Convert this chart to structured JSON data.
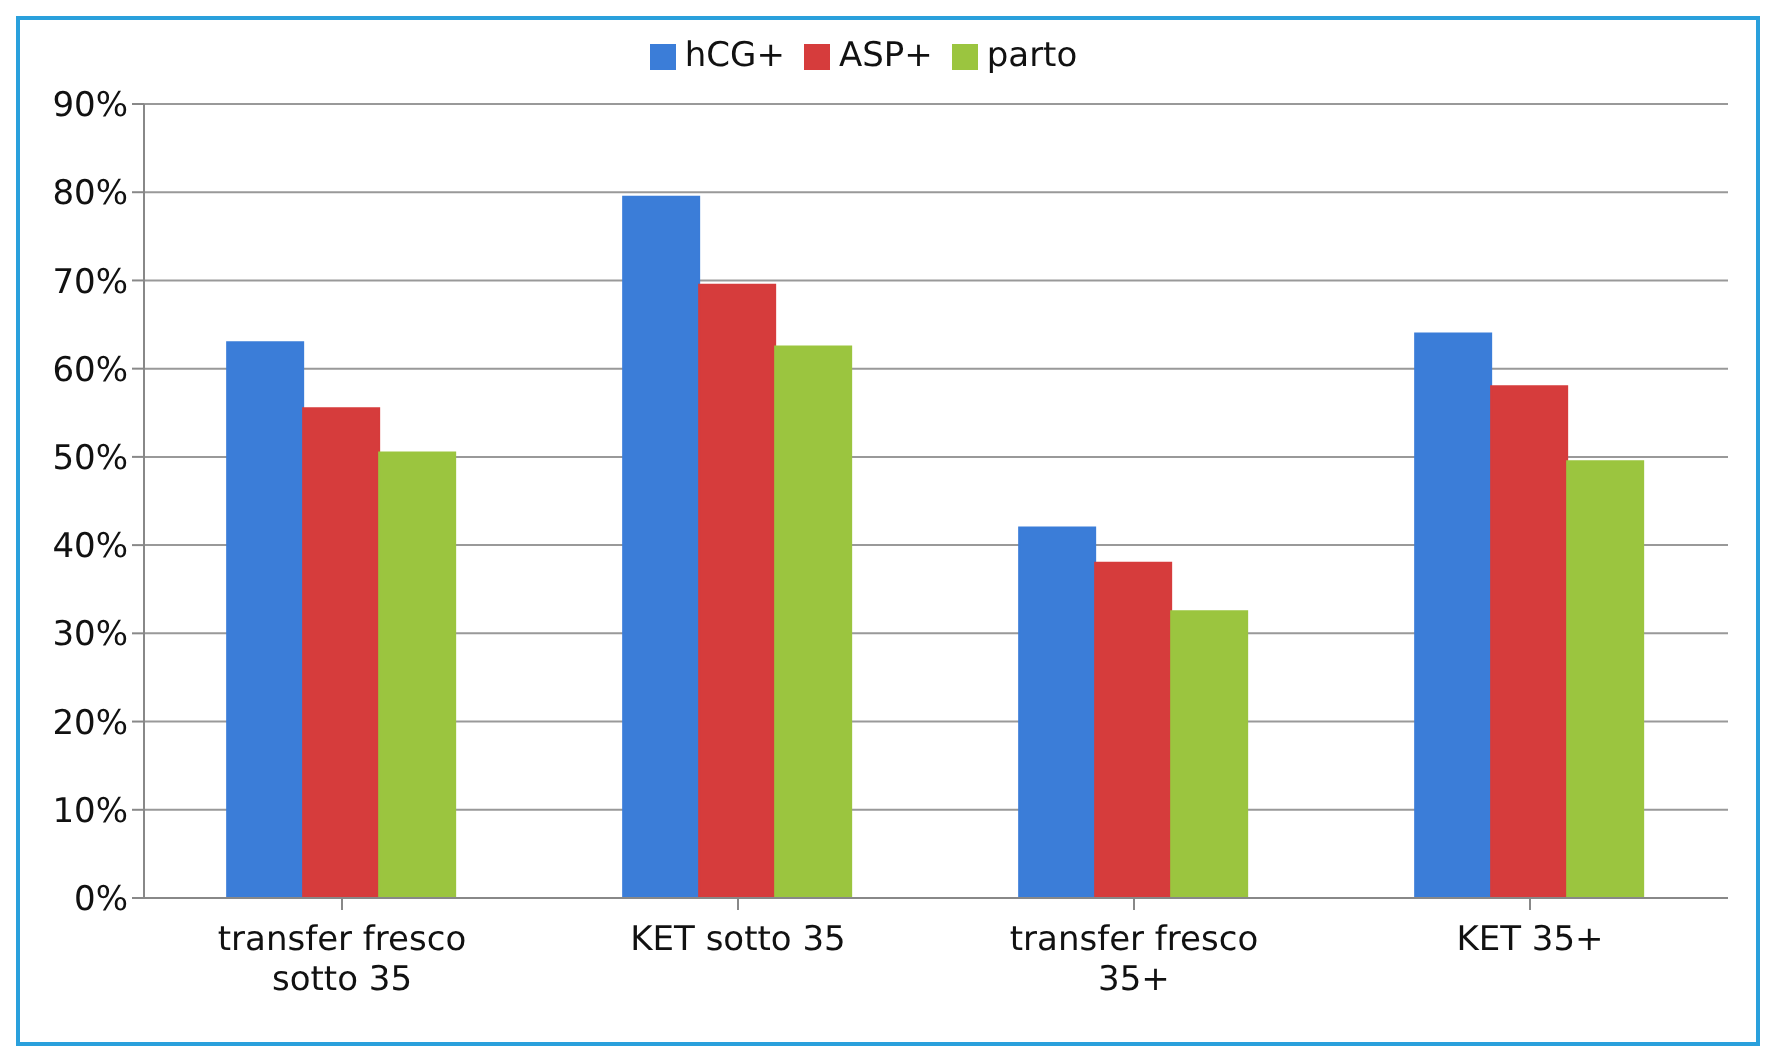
{
  "chart_data": {
    "type": "bar",
    "categories": [
      "transfer fresco sotto 35",
      "KET sotto 35",
      "transfer fresco 35+",
      "KET 35+"
    ],
    "series": [
      {
        "name": "hCG+",
        "color": "#3b7dd8",
        "values": [
          63,
          79.5,
          42,
          64
        ]
      },
      {
        "name": "ASP+",
        "color": "#d63c3c",
        "values": [
          55.5,
          69.5,
          38,
          58
        ]
      },
      {
        "name": "parto",
        "color": "#9bc53f",
        "values": [
          50.5,
          62.5,
          32.5,
          49.5
        ]
      }
    ],
    "ylim": [
      0,
      90
    ],
    "yticks": [
      {
        "value": 0,
        "label": "0%"
      },
      {
        "value": 10,
        "label": "10%"
      },
      {
        "value": 20,
        "label": "20%"
      },
      {
        "value": 30,
        "label": "30%"
      },
      {
        "value": 40,
        "label": "40%"
      },
      {
        "value": 50,
        "label": "50%"
      },
      {
        "value": 60,
        "label": "60%"
      },
      {
        "value": 70,
        "label": "70%"
      },
      {
        "value": 80,
        "label": "80%"
      },
      {
        "value": 90,
        "label": "90%"
      }
    ],
    "grid": "y",
    "legend": "top"
  }
}
